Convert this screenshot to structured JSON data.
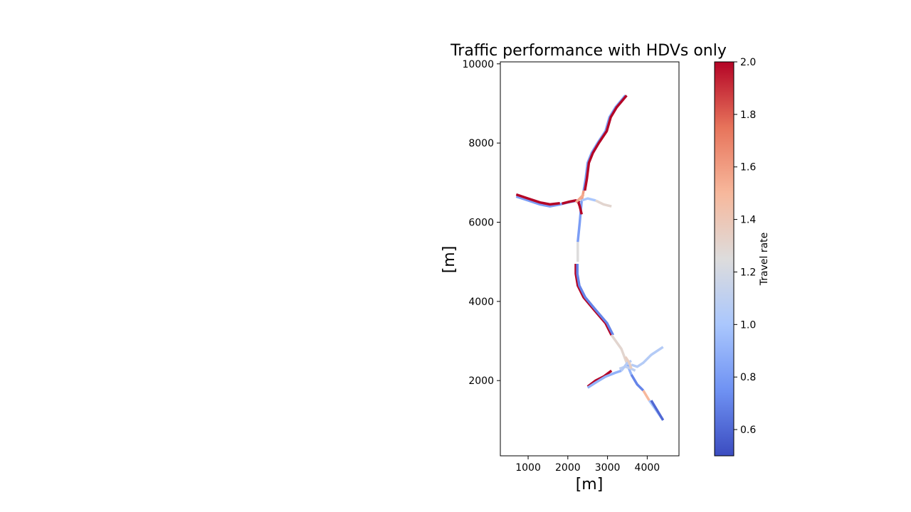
{
  "chart_data": {
    "type": "line",
    "title": "Traffic performance with HDVs only",
    "xlabel": "[m]",
    "ylabel": "[m]",
    "xlim": [
      300,
      4800
    ],
    "ylim": [
      100,
      10050
    ],
    "xticks": [
      1000,
      2000,
      3000,
      4000
    ],
    "yticks": [
      2000,
      4000,
      6000,
      8000,
      10000
    ],
    "grid": false,
    "colorbar": {
      "label": "Travel rate",
      "colormap": "coolwarm",
      "range": [
        0.5,
        2.0
      ],
      "ticks": [
        "0.6",
        "0.8",
        "1.0",
        "1.2",
        "1.4",
        "1.6",
        "1.8",
        "2.0"
      ],
      "colors": [
        "#3b4cc0",
        "#6f92f3",
        "#aac7fd",
        "#dddcdc",
        "#f7b89c",
        "#e7745b",
        "#b40426"
      ]
    },
    "segments": [
      {
        "x": [
          3450,
          3200,
          3050,
          2950,
          2750,
          2600,
          2500,
          2450,
          2400
        ],
        "y": [
          9200,
          8900,
          8650,
          8300,
          8000,
          7750,
          7500,
          7100,
          6800
        ],
        "value": 0.8
      },
      {
        "x": [
          3480,
          3230,
          3080,
          2980,
          2780,
          2630,
          2530,
          2480,
          2430
        ],
        "y": [
          9200,
          8900,
          8650,
          8300,
          8000,
          7750,
          7500,
          7100,
          6800
        ],
        "value": 2.0
      },
      {
        "x": [
          2400,
          2350
        ],
        "y": [
          6800,
          6550
        ],
        "value": 1.6
      },
      {
        "x": [
          2350,
          2300,
          2250
        ],
        "y": [
          6550,
          6000,
          5500
        ],
        "value": 0.8
      },
      {
        "x": [
          2250,
          2250
        ],
        "y": [
          5500,
          5000
        ],
        "value": 1.25
      },
      {
        "x": [
          2200,
          2200,
          2250,
          2400,
          2650,
          2950,
          3100
        ],
        "y": [
          4950,
          4700,
          4400,
          4100,
          3800,
          3450,
          3150
        ],
        "value": 2.0
      },
      {
        "x": [
          2240,
          2240,
          2290,
          2440,
          2690,
          2990,
          3140
        ],
        "y": [
          4950,
          4700,
          4400,
          4100,
          3800,
          3450,
          3150
        ],
        "value": 0.7
      },
      {
        "x": [
          3100,
          3350,
          3500
        ],
        "y": [
          3150,
          2800,
          2400
        ],
        "value": 1.3
      },
      {
        "x": [
          3500,
          3600
        ],
        "y": [
          2400,
          2150
        ],
        "value": 0.9
      },
      {
        "x": [
          3600,
          3750,
          3900
        ],
        "y": [
          2150,
          1900,
          1750
        ],
        "value": 0.7
      },
      {
        "x": [
          3900,
          4050
        ],
        "y": [
          1750,
          1500
        ],
        "value": 1.5
      },
      {
        "x": [
          4050,
          4400
        ],
        "y": [
          1500,
          1000
        ],
        "value": 1.0
      },
      {
        "x": [
          4100,
          4400
        ],
        "y": [
          1500,
          1000
        ],
        "value": 0.6
      },
      {
        "x": [
          700,
          1000,
          1300,
          1550,
          1800,
          2000,
          2250
        ],
        "y": [
          6650,
          6550,
          6450,
          6400,
          6450,
          6500,
          6550
        ],
        "value": 0.8
      },
      {
        "x": [
          700,
          1000,
          1300,
          1550,
          1800
        ],
        "y": [
          6700,
          6600,
          6500,
          6450,
          6480
        ],
        "value": 2.0
      },
      {
        "x": [
          1850,
          2050,
          2200,
          2300
        ],
        "y": [
          6470,
          6520,
          6550,
          6500
        ],
        "value": 2.0
      },
      {
        "x": [
          2250,
          2300,
          2350
        ],
        "y": [
          6550,
          6400,
          6200
        ],
        "value": 2.0
      },
      {
        "x": [
          2200,
          2300,
          2400
        ],
        "y": [
          6500,
          6600,
          6700
        ],
        "value": 1.55
      },
      {
        "x": [
          2350,
          2500,
          2700
        ],
        "y": [
          6550,
          6600,
          6550
        ],
        "value": 1.0
      },
      {
        "x": [
          2700,
          2900,
          3100
        ],
        "y": [
          6550,
          6450,
          6400
        ],
        "value": 1.3
      },
      {
        "x": [
          2500,
          2700,
          2900,
          3100
        ],
        "y": [
          1850,
          2000,
          2100,
          2250
        ],
        "value": 2.0
      },
      {
        "x": [
          2500,
          2700,
          2950,
          3200,
          3350
        ],
        "y": [
          1820,
          1950,
          2100,
          2200,
          2250
        ],
        "value": 0.9
      },
      {
        "x": [
          3300,
          3450,
          3600,
          3700
        ],
        "y": [
          2300,
          2350,
          2300,
          2250
        ],
        "value": 1.1
      },
      {
        "x": [
          3350,
          3500,
          3600
        ],
        "y": [
          2250,
          2450,
          2500
        ],
        "value": 1.05
      },
      {
        "x": [
          3600,
          3750,
          3900,
          4100,
          4400
        ],
        "y": [
          2400,
          2350,
          2450,
          2650,
          2850
        ],
        "value": 1.05
      },
      {
        "x": [
          3450,
          3550,
          3600
        ],
        "y": [
          2600,
          2450,
          2300
        ],
        "value": 1.35
      }
    ]
  }
}
